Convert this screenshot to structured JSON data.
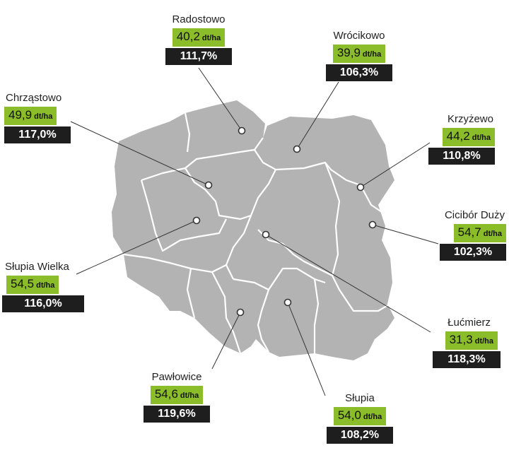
{
  "map": {
    "fill": "#b3b3b3",
    "border_color": "#ffffff",
    "leader_color": "#333333",
    "yield_color": "#8bbd2a",
    "pct_color": "#1e1e1e"
  },
  "unit": "dt/ha",
  "points": [
    {
      "id": "radostowo",
      "name": "Radostowo",
      "yield": "40,2",
      "pct": "111,7%"
    },
    {
      "id": "wrocikowo",
      "name": "Wrócikowo",
      "yield": "39,9",
      "pct": "106,3%"
    },
    {
      "id": "chrzastowo",
      "name": "Chrząstowo",
      "yield": "49,9",
      "pct": "117,0%"
    },
    {
      "id": "krzyzewo",
      "name": "Krzyżewo",
      "yield": "44,2",
      "pct": "110,8%"
    },
    {
      "id": "cicibor",
      "name": "Cicibór Duży",
      "yield": "54,7",
      "pct": "102,3%"
    },
    {
      "id": "slupia-wielka",
      "name": "Słupia Wielka",
      "yield": "54,5",
      "pct": "116,0%"
    },
    {
      "id": "lucmierz",
      "name": "Łućmierz",
      "yield": "31,3",
      "pct": "118,3%"
    },
    {
      "id": "pawlowice",
      "name": "Pawłowice",
      "yield": "54,6",
      "pct": "119,6%"
    },
    {
      "id": "slupia",
      "name": "Słupia",
      "yield": "54,0",
      "pct": "108,2%"
    }
  ]
}
